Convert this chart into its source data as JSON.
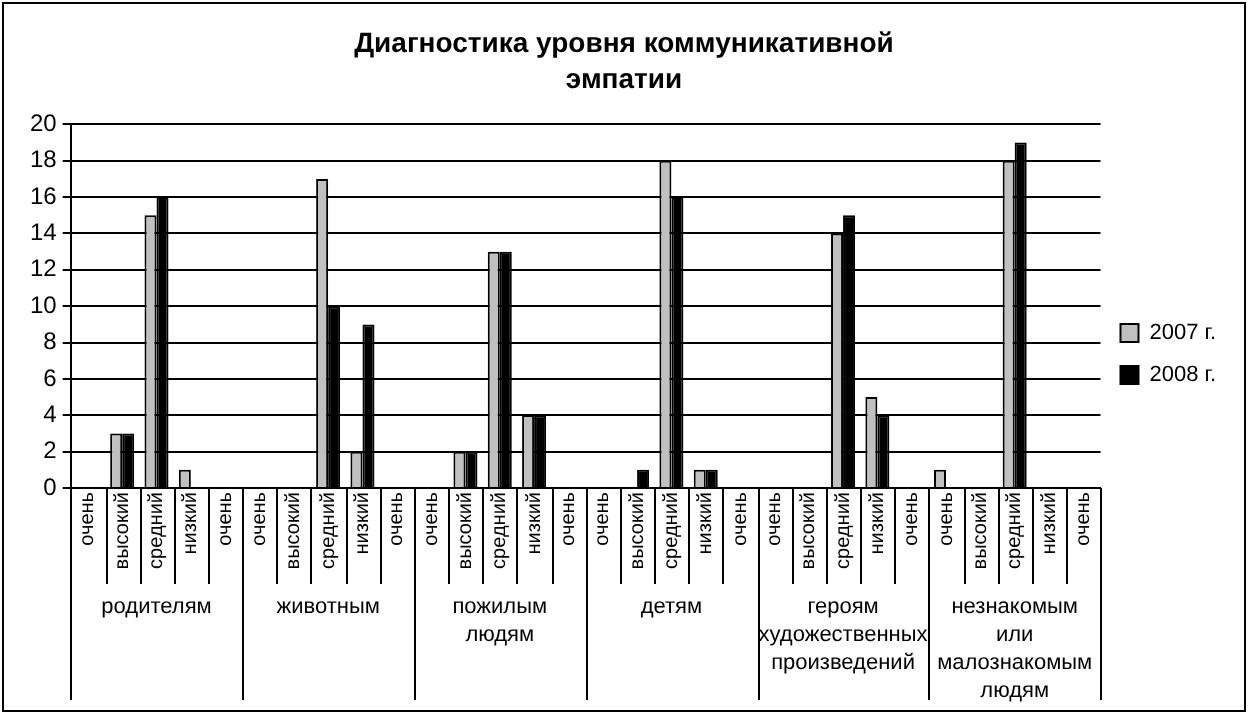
{
  "chart_data": {
    "type": "bar",
    "title": "Диагностика уровня коммуникативной эмпатии",
    "categories": [
      "очень",
      "высокий",
      "средний",
      "низкий",
      "очень",
      "очень",
      "высокий",
      "средний",
      "низкий",
      "очень",
      "очень",
      "высокий",
      "средний",
      "низкий",
      "очень",
      "очень",
      "высокий",
      "средний",
      "низкий",
      "очень",
      "очень",
      "высокий",
      "средний",
      "низкий",
      "очень",
      "очень",
      "высокий",
      "средний",
      "низкий",
      "очень"
    ],
    "series": [
      {
        "name": "2007 г.",
        "color": "#c0c0c0",
        "values": [
          0,
          3,
          15,
          1,
          0,
          0,
          0,
          17,
          2,
          0,
          0,
          2,
          13,
          4,
          0,
          0,
          0,
          18,
          1,
          0,
          0,
          0,
          14,
          5,
          0,
          1,
          0,
          18,
          0,
          0
        ]
      },
      {
        "name": "2008 г.",
        "color": "#000000",
        "values": [
          0,
          3,
          16,
          0,
          0,
          0,
          0,
          10,
          9,
          0,
          0,
          2,
          13,
          4,
          0,
          0,
          1,
          16,
          1,
          0,
          0,
          0,
          15,
          4,
          0,
          0,
          0,
          19,
          0,
          0
        ]
      }
    ],
    "annotations": [
      "родителям",
      "животным",
      "пожилым людям",
      "детям",
      "героям художественных произведений",
      "незнакомым или малознакомым людям"
    ],
    "ylim": [
      0,
      20
    ],
    "yticks": [
      0,
      2,
      4,
      6,
      8,
      10,
      12,
      14,
      16,
      18,
      20
    ],
    "grid": "y",
    "legend": "right"
  }
}
